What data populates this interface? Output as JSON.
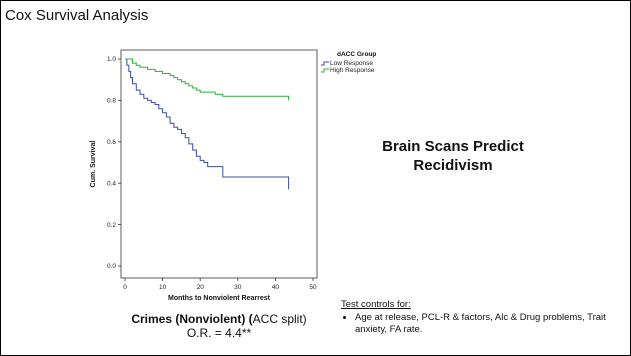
{
  "slide": {
    "title": "Cox Survival Analysis",
    "headline_line1": "Brain Scans Predict",
    "headline_line2": "Recidivism",
    "crimes_bold": "Crimes (Nonviolent) (",
    "crimes_rest": "ACC split)",
    "odds_ratio": "O.R. = 4.4**",
    "controls_title": "Test controls for:",
    "controls_items": [
      "Age at release, PCL-R & factors,  Alc & Drug problems, Trait anxiety,   FA rate."
    ]
  },
  "colors": {
    "low_response": "#3b4fa3",
    "high_response": "#2fae3a",
    "axis": "#333333"
  },
  "chart_data": {
    "type": "line",
    "xlabel": "Months to Nonviolent Rearrest",
    "ylabel": "Cum. Survival",
    "xlim": [
      0,
      50
    ],
    "ylim": [
      0.0,
      1.0
    ],
    "x_ticks": [
      "0",
      "10",
      "20",
      "30",
      "40",
      "50"
    ],
    "y_ticks": [
      "0.0",
      "0.2",
      "0.4",
      "0.6",
      "0.8",
      "1.0"
    ],
    "legend_title": "dACC Group",
    "legend_position": "top-right",
    "series": [
      {
        "name": "Low Response",
        "color": "#3b4fa3",
        "step_x": [
          0,
          0.5,
          1,
          1.5,
          2,
          3,
          4,
          5,
          6,
          7,
          8,
          9,
          10,
          11,
          12,
          13,
          14,
          15,
          16,
          17,
          18,
          19,
          20,
          21,
          22,
          24,
          26,
          27,
          43.5
        ],
        "step_y": [
          1.0,
          0.97,
          0.94,
          0.91,
          0.88,
          0.85,
          0.83,
          0.81,
          0.8,
          0.79,
          0.78,
          0.76,
          0.74,
          0.72,
          0.69,
          0.67,
          0.66,
          0.64,
          0.62,
          0.59,
          0.56,
          0.53,
          0.51,
          0.5,
          0.48,
          0.48,
          0.43,
          0.43,
          0.37
        ]
      },
      {
        "name": "High Response",
        "color": "#2fae3a",
        "step_x": [
          0,
          2,
          3,
          4,
          6,
          8,
          10,
          12,
          13,
          14,
          15,
          16,
          17,
          18,
          19,
          20,
          22,
          24,
          26,
          30,
          43.5
        ],
        "step_y": [
          1.0,
          0.98,
          0.97,
          0.96,
          0.95,
          0.94,
          0.93,
          0.92,
          0.91,
          0.9,
          0.89,
          0.88,
          0.87,
          0.86,
          0.85,
          0.84,
          0.84,
          0.83,
          0.82,
          0.82,
          0.8
        ]
      }
    ]
  }
}
